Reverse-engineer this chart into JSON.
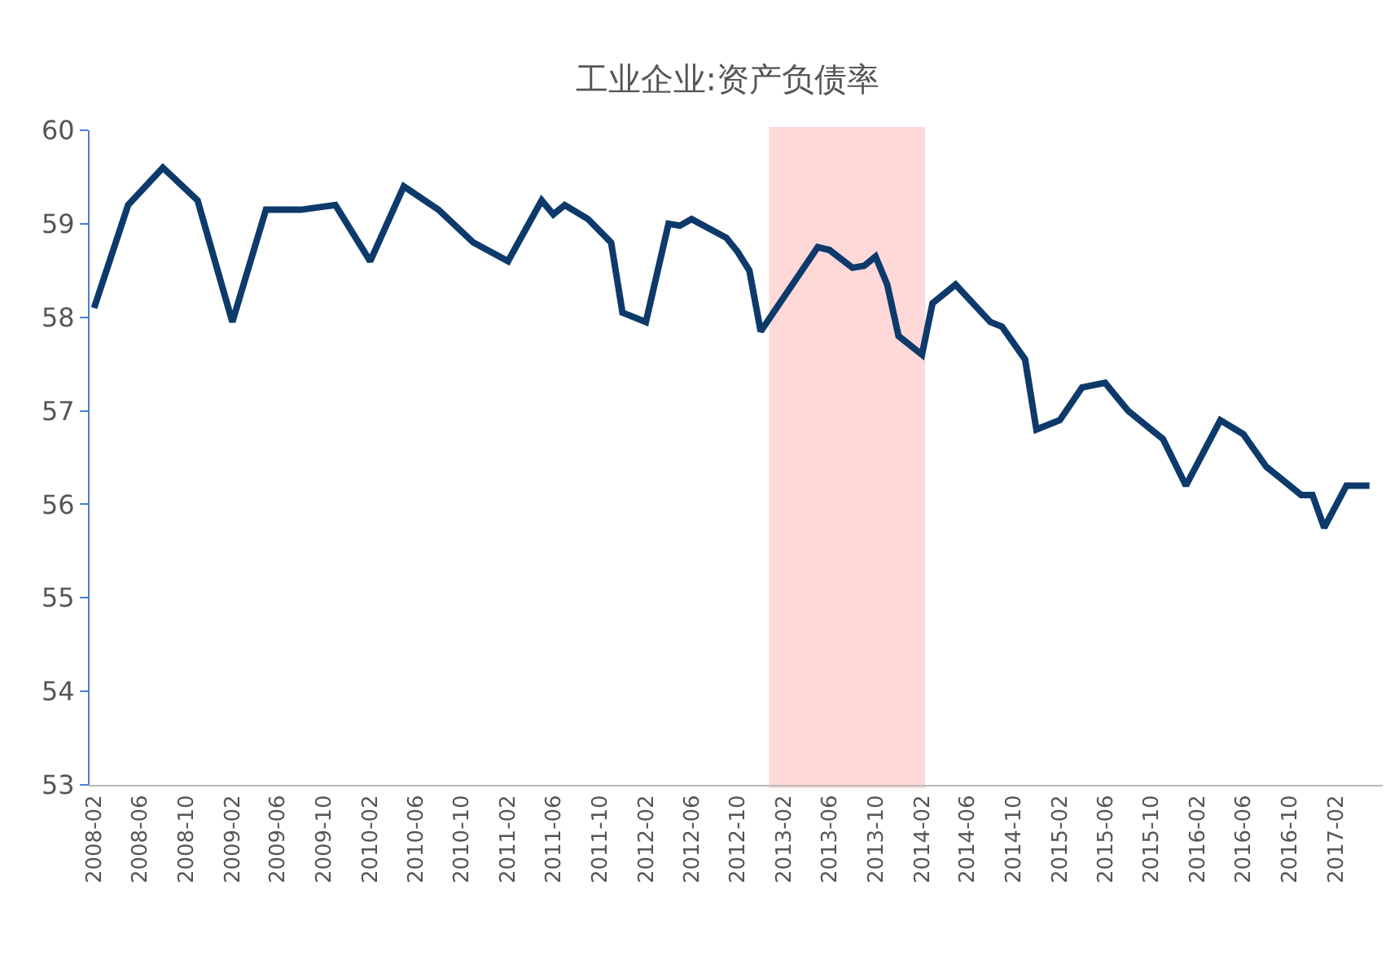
{
  "chart_data": {
    "type": "line",
    "title": "工业企业:资产负债率",
    "x": [
      "2008-02",
      "2008-05",
      "2008-08",
      "2008-11",
      "2009-02",
      "2009-05",
      "2009-08",
      "2009-11",
      "2010-02",
      "2010-05",
      "2010-08",
      "2010-11",
      "2011-02",
      "2011-05",
      "2011-06",
      "2011-07",
      "2011-09",
      "2011-11",
      "2011-12",
      "2012-02",
      "2012-04",
      "2012-05",
      "2012-06",
      "2012-09",
      "2012-10",
      "2012-11",
      "2012-12",
      "2013-05",
      "2013-06",
      "2013-08",
      "2013-09",
      "2013-10",
      "2013-11",
      "2013-12",
      "2014-01",
      "2014-02",
      "2014-03",
      "2014-05",
      "2014-08",
      "2014-09",
      "2014-11",
      "2014-12",
      "2015-02",
      "2015-04",
      "2015-06",
      "2015-07",
      "2015-08",
      "2015-10",
      "2015-11",
      "2016-01",
      "2016-04",
      "2016-06",
      "2016-08",
      "2016-09",
      "2016-11",
      "2016-12",
      "2017-01",
      "2017-03",
      "2017-05"
    ],
    "series": [
      {
        "color": "#0d3a6b",
        "values": [
          58.1,
          59.2,
          59.6,
          59.25,
          57.95,
          59.15,
          59.15,
          59.2,
          58.6,
          59.4,
          59.15,
          58.8,
          58.6,
          59.25,
          59.1,
          59.2,
          59.05,
          58.8,
          58.05,
          57.95,
          59.0,
          58.98,
          59.05,
          58.85,
          58.7,
          58.5,
          57.85,
          58.75,
          58.72,
          58.53,
          58.55,
          58.65,
          58.35,
          57.8,
          57.7,
          57.6,
          58.15,
          58.35,
          57.95,
          57.9,
          57.55,
          56.8,
          56.9,
          57.25,
          57.3,
          57.15,
          57.0,
          56.8,
          56.7,
          56.2,
          56.9,
          56.75,
          56.4,
          56.3,
          56.1,
          56.1,
          55.75,
          56.2,
          56.2
        ]
      }
    ],
    "xlim": [
      "2008-01-20",
      "2017-06-05"
    ],
    "xticks": [
      "2008-02",
      "2008-06",
      "2008-10",
      "2009-02",
      "2009-06",
      "2009-10",
      "2010-02",
      "2010-06",
      "2010-10",
      "2011-02",
      "2011-06",
      "2011-10",
      "2012-02",
      "2012-06",
      "2012-10",
      "2013-02",
      "2013-06",
      "2013-10",
      "2014-02",
      "2014-06",
      "2014-10",
      "2015-02",
      "2015-06",
      "2015-10",
      "2016-02",
      "2016-06",
      "2016-10",
      "2017-02"
    ],
    "ylim": [
      53,
      60
    ],
    "yticks": [
      53,
      54,
      55,
      56,
      57,
      58,
      59,
      60
    ],
    "bands": [
      {
        "axis": "x",
        "from": "2013-01",
        "to": "2014-02",
        "color": "#ff0000"
      }
    ],
    "grid": false,
    "marker": "none",
    "line_style": "solid"
  }
}
